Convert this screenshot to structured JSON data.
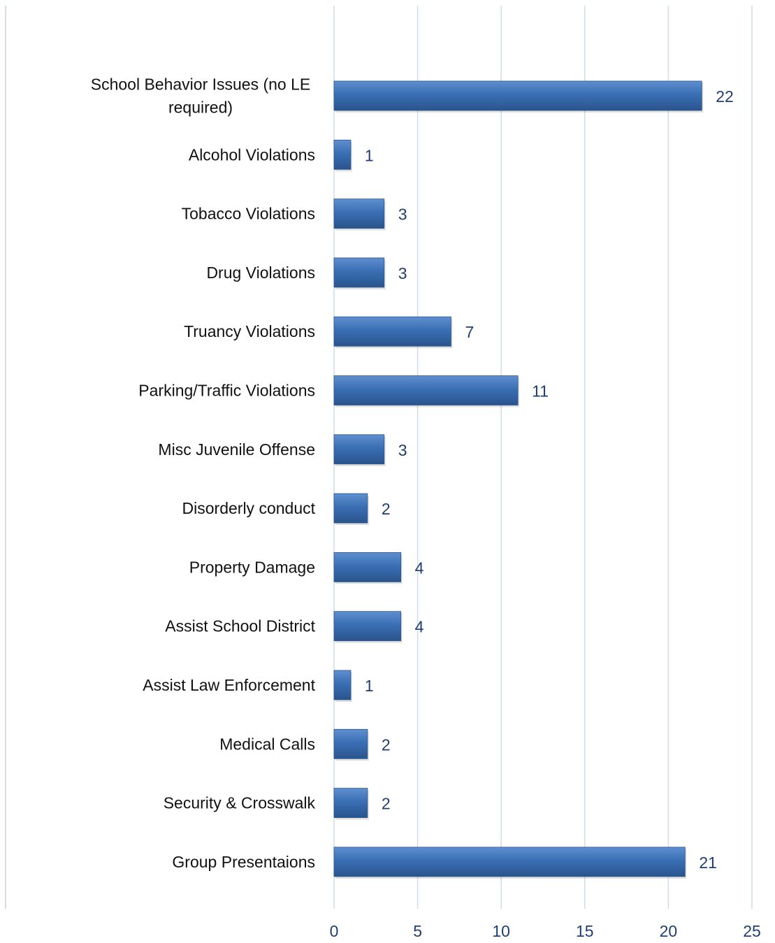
{
  "chart_data": {
    "type": "bar",
    "orientation": "horizontal",
    "categories": [
      "School Behavior Issues (no LE required)",
      "Alcohol Violations",
      "Tobacco Violations",
      "Drug Violations",
      "Truancy Violations",
      "Parking/Traffic Violations",
      "Misc Juvenile Offense",
      "Disorderly conduct",
      "Property Damage",
      "Assist School District",
      "Assist Law Enforcement",
      "Medical Calls",
      "Security & Crosswalk",
      "Group Presentaions"
    ],
    "category_lines": [
      [
        "School Behavior Issues (no LE",
        "required)"
      ],
      [
        "Alcohol Violations"
      ],
      [
        "Tobacco Violations"
      ],
      [
        "Drug Violations"
      ],
      [
        "Truancy Violations"
      ],
      [
        "Parking/Traffic Violations"
      ],
      [
        "Misc Juvenile Offense"
      ],
      [
        "Disorderly conduct"
      ],
      [
        "Property Damage"
      ],
      [
        "Assist School District"
      ],
      [
        "Assist Law Enforcement"
      ],
      [
        "Medical Calls"
      ],
      [
        "Security & Crosswalk"
      ],
      [
        "Group Presentaions"
      ]
    ],
    "values": [
      22,
      1,
      3,
      3,
      7,
      11,
      3,
      2,
      4,
      4,
      1,
      2,
      2,
      21
    ],
    "xlim": [
      0,
      25
    ],
    "xticks": [
      0,
      5,
      10,
      15,
      20,
      25
    ],
    "grid": true,
    "data_labels": true,
    "legend": "none",
    "title": "",
    "xlabel": "",
    "ylabel": "",
    "colors": {
      "bar": "#3a6fb5",
      "bar_dark": "#2a548c",
      "bar_light": "#5f8fcf",
      "grid": "#cfdcea",
      "axis": "#c5d3e3",
      "value_text": "#1f3f73",
      "category_text": "#111111"
    }
  }
}
